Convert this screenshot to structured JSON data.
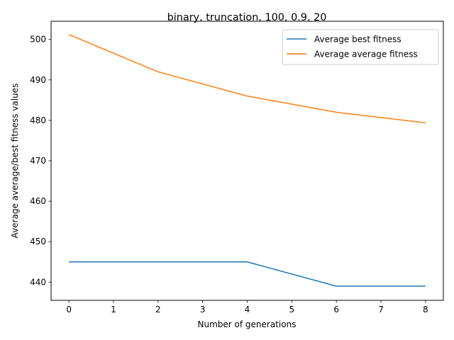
{
  "chart_data": {
    "type": "line",
    "title": "binary, truncation, 100, 0.9, 20",
    "xlabel": "Number of generations",
    "ylabel": "Average average/best fitness values",
    "xlim": [
      -0.4,
      8.4
    ],
    "ylim": [
      435.5,
      504.5
    ],
    "xticks": [
      0,
      1,
      2,
      3,
      4,
      5,
      6,
      7,
      8
    ],
    "yticks": [
      440,
      450,
      460,
      470,
      480,
      490,
      500
    ],
    "grid": false,
    "legend_position": "top-right",
    "series": [
      {
        "name": "Average best fitness",
        "color": "#1f77b4",
        "x": [
          0,
          2,
          4,
          6,
          8
        ],
        "y": [
          445,
          445,
          445,
          439,
          439
        ]
      },
      {
        "name": "Average average fitness",
        "color": "#ff7f0e",
        "x": [
          0,
          2,
          4,
          6,
          8
        ],
        "y": [
          501.2,
          492,
          486,
          482,
          479.4
        ]
      }
    ]
  }
}
